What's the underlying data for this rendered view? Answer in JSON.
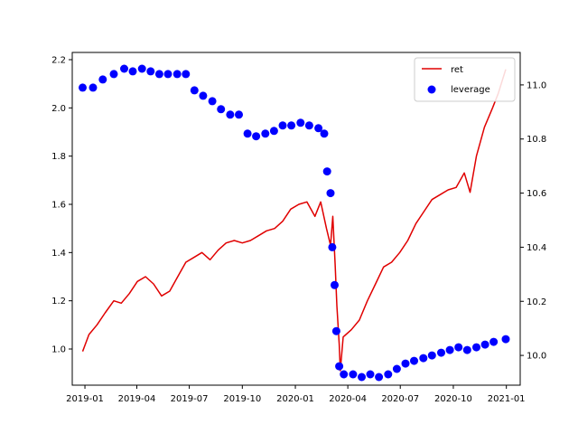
{
  "chart_data": {
    "type": "line",
    "title": "",
    "xlabel": "",
    "ylabel_left": "",
    "ylabel_right": "",
    "x_axis": {
      "type": "date",
      "range": [
        "2018-12-10",
        "2021-01-25"
      ],
      "ticks": [
        {
          "date": "2019-01-01",
          "label": "2019-01"
        },
        {
          "date": "2019-04-01",
          "label": "2019-04"
        },
        {
          "date": "2019-07-01",
          "label": "2019-07"
        },
        {
          "date": "2019-10-01",
          "label": "2019-10"
        },
        {
          "date": "2020-01-01",
          "label": "2020-01"
        },
        {
          "date": "2020-04-01",
          "label": "2020-04"
        },
        {
          "date": "2020-07-01",
          "label": "2020-07"
        },
        {
          "date": "2020-10-01",
          "label": "2020-10"
        },
        {
          "date": "2021-01-01",
          "label": "2021-01"
        }
      ]
    },
    "y_left": {
      "range": [
        0.85,
        2.23
      ],
      "ticks": [
        1.0,
        1.2,
        1.4,
        1.6,
        1.8,
        2.0,
        2.2
      ],
      "tick_labels": [
        "1.0",
        "1.2",
        "1.4",
        "1.6",
        "1.8",
        "2.0",
        "2.2"
      ]
    },
    "y_right": {
      "range": [
        9.89,
        11.12
      ],
      "ticks": [
        10.0,
        10.2,
        10.4,
        10.6,
        10.8,
        11.0
      ],
      "tick_labels": [
        "10.0",
        "10.2",
        "10.4",
        "10.6",
        "10.8",
        "11.0"
      ]
    },
    "grid": false,
    "legend": {
      "placement": "top-right",
      "entries": [
        "ret",
        "leverage"
      ]
    },
    "series": [
      {
        "name": "ret",
        "kind": "line",
        "axis": "left",
        "color": "#e00000",
        "points": [
          [
            "2018-12-28",
            0.99
          ],
          [
            "2019-01-08",
            1.06
          ],
          [
            "2019-01-22",
            1.1
          ],
          [
            "2019-02-05",
            1.15
          ],
          [
            "2019-02-20",
            1.2
          ],
          [
            "2019-03-05",
            1.19
          ],
          [
            "2019-03-19",
            1.23
          ],
          [
            "2019-04-02",
            1.28
          ],
          [
            "2019-04-16",
            1.3
          ],
          [
            "2019-04-30",
            1.27
          ],
          [
            "2019-05-14",
            1.22
          ],
          [
            "2019-05-28",
            1.24
          ],
          [
            "2019-06-11",
            1.3
          ],
          [
            "2019-06-25",
            1.36
          ],
          [
            "2019-07-09",
            1.38
          ],
          [
            "2019-07-23",
            1.4
          ],
          [
            "2019-08-06",
            1.37
          ],
          [
            "2019-08-20",
            1.41
          ],
          [
            "2019-09-03",
            1.44
          ],
          [
            "2019-09-17",
            1.45
          ],
          [
            "2019-10-01",
            1.44
          ],
          [
            "2019-10-15",
            1.45
          ],
          [
            "2019-10-29",
            1.47
          ],
          [
            "2019-11-12",
            1.49
          ],
          [
            "2019-11-26",
            1.5
          ],
          [
            "2019-12-10",
            1.53
          ],
          [
            "2019-12-24",
            1.58
          ],
          [
            "2020-01-07",
            1.6
          ],
          [
            "2020-01-21",
            1.61
          ],
          [
            "2020-02-04",
            1.55
          ],
          [
            "2020-02-14",
            1.61
          ],
          [
            "2020-02-24",
            1.5
          ],
          [
            "2020-03-02",
            1.43
          ],
          [
            "2020-03-06",
            1.55
          ],
          [
            "2020-03-10",
            1.35
          ],
          [
            "2020-03-13",
            1.18
          ],
          [
            "2020-03-17",
            1.02
          ],
          [
            "2020-03-19",
            0.91
          ],
          [
            "2020-03-24",
            1.05
          ],
          [
            "2020-04-07",
            1.08
          ],
          [
            "2020-04-21",
            1.12
          ],
          [
            "2020-05-05",
            1.2
          ],
          [
            "2020-05-19",
            1.27
          ],
          [
            "2020-06-02",
            1.34
          ],
          [
            "2020-06-16",
            1.36
          ],
          [
            "2020-06-30",
            1.4
          ],
          [
            "2020-07-14",
            1.45
          ],
          [
            "2020-07-28",
            1.52
          ],
          [
            "2020-08-11",
            1.57
          ],
          [
            "2020-08-25",
            1.62
          ],
          [
            "2020-09-08",
            1.64
          ],
          [
            "2020-09-22",
            1.66
          ],
          [
            "2020-10-06",
            1.67
          ],
          [
            "2020-10-20",
            1.73
          ],
          [
            "2020-10-30",
            1.65
          ],
          [
            "2020-11-10",
            1.8
          ],
          [
            "2020-11-24",
            1.92
          ],
          [
            "2020-12-08",
            2.0
          ],
          [
            "2020-12-18",
            2.06
          ],
          [
            "2020-12-31",
            2.16
          ]
        ]
      },
      {
        "name": "leverage",
        "kind": "scatter",
        "axis": "right",
        "color": "#0000ff",
        "points": [
          [
            "2018-12-28",
            10.99
          ],
          [
            "2019-01-15",
            10.99
          ],
          [
            "2019-02-01",
            11.02
          ],
          [
            "2019-02-20",
            11.04
          ],
          [
            "2019-03-10",
            11.06
          ],
          [
            "2019-03-25",
            11.05
          ],
          [
            "2019-04-10",
            11.06
          ],
          [
            "2019-04-25",
            11.05
          ],
          [
            "2019-05-10",
            11.04
          ],
          [
            "2019-05-25",
            11.04
          ],
          [
            "2019-06-10",
            11.04
          ],
          [
            "2019-06-25",
            11.04
          ],
          [
            "2019-07-10",
            10.98
          ],
          [
            "2019-07-25",
            10.96
          ],
          [
            "2019-08-10",
            10.94
          ],
          [
            "2019-08-25",
            10.91
          ],
          [
            "2019-09-10",
            10.89
          ],
          [
            "2019-09-25",
            10.89
          ],
          [
            "2019-10-10",
            10.82
          ],
          [
            "2019-10-25",
            10.81
          ],
          [
            "2019-11-10",
            10.82
          ],
          [
            "2019-11-25",
            10.83
          ],
          [
            "2019-12-10",
            10.85
          ],
          [
            "2019-12-25",
            10.85
          ],
          [
            "2020-01-10",
            10.86
          ],
          [
            "2020-01-25",
            10.85
          ],
          [
            "2020-02-10",
            10.84
          ],
          [
            "2020-02-20",
            10.82
          ],
          [
            "2020-02-25",
            10.68
          ],
          [
            "2020-03-02",
            10.6
          ],
          [
            "2020-03-05",
            10.4
          ],
          [
            "2020-03-09",
            10.26
          ],
          [
            "2020-03-12",
            10.09
          ],
          [
            "2020-03-17",
            9.96
          ],
          [
            "2020-03-25",
            9.93
          ],
          [
            "2020-04-10",
            9.93
          ],
          [
            "2020-04-25",
            9.92
          ],
          [
            "2020-05-10",
            9.93
          ],
          [
            "2020-05-25",
            9.92
          ],
          [
            "2020-06-10",
            9.93
          ],
          [
            "2020-06-25",
            9.95
          ],
          [
            "2020-07-10",
            9.97
          ],
          [
            "2020-07-25",
            9.98
          ],
          [
            "2020-08-10",
            9.99
          ],
          [
            "2020-08-25",
            10.0
          ],
          [
            "2020-09-10",
            10.01
          ],
          [
            "2020-09-25",
            10.02
          ],
          [
            "2020-10-10",
            10.03
          ],
          [
            "2020-10-25",
            10.02
          ],
          [
            "2020-11-10",
            10.03
          ],
          [
            "2020-11-25",
            10.04
          ],
          [
            "2020-12-10",
            10.05
          ],
          [
            "2020-12-31",
            10.06
          ]
        ]
      }
    ]
  }
}
